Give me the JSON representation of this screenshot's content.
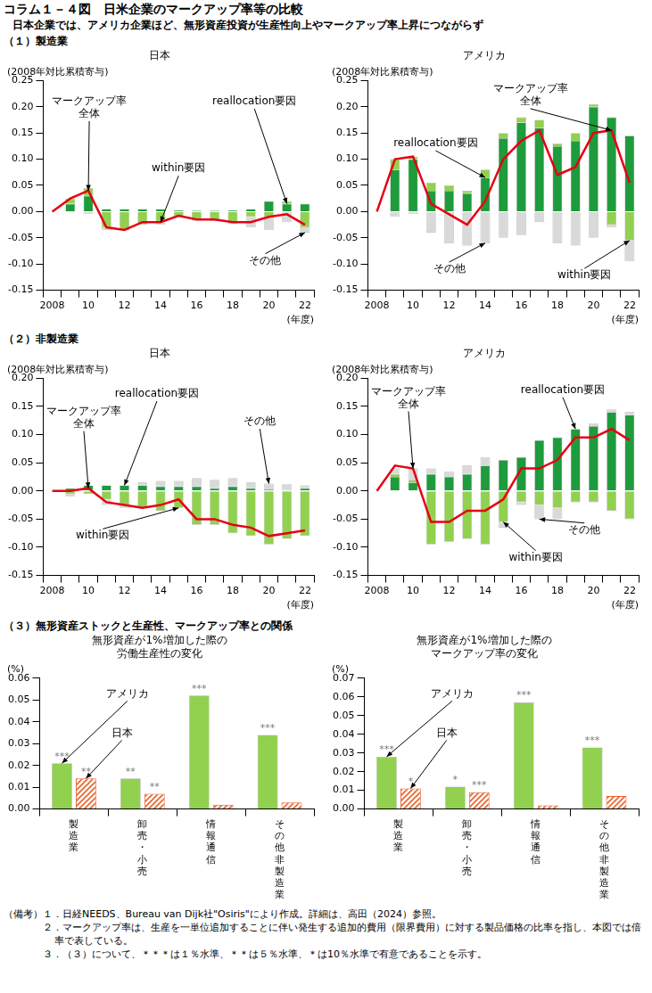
{
  "title": "コラム１－４図　日米企業のマークアップ率等の比較",
  "subtitle": "日本企業では、アメリカ企業ほど、無形資産投資が生産性向上やマークアップ率上昇につながらず",
  "sections": [
    "（１）製造業",
    "（２）非製造業",
    "（３）無形資産ストックと生産性、マークアップ率との関係"
  ],
  "notes_label": "（備考）",
  "notes": [
    "１．日経NEEDS、Bureau van Dijk社\"Osiris\"により作成。詳細は、高田（2024）参照。",
    "２．マークアップ率は、生産を一単位追加することに伴い発生する追加的費用（限界費用）に対する製品価格の比率を指し、本図では倍率で表している。",
    "３．（３）について、＊＊＊は１％水準、＊＊は５％水準、＊は10％水準で有意であることを示す。"
  ],
  "chart_data": [
    {
      "type": "bar",
      "title": "日本",
      "y_label": "(2008年対比累積寄与)",
      "x_label": "(年度)",
      "categories": [
        "2008",
        null,
        "10",
        null,
        "12",
        null,
        "14",
        null,
        "16",
        null,
        "18",
        null,
        "20",
        null,
        "22"
      ],
      "ylim": [
        -0.15,
        0.25
      ],
      "yticks": [
        -0.15,
        {
          "value": -0.1,
          "label": "-0.10"
        },
        -0.05,
        {
          "value": 0,
          "label": "0.00"
        },
        0.05,
        {
          "value": 0.1,
          "label": "0.10"
        },
        0.15,
        {
          "value": 0.2,
          "label": "0.20"
        },
        0.25
      ],
      "grid": false,
      "stacked": true,
      "series": [
        {
          "name": "reallocation要因",
          "type": "bar",
          "color": "#1e9b3c",
          "values": [
            0,
            0.015,
            0.03,
            0.005,
            0.005,
            0.005,
            0.005,
            0.003,
            0.002,
            0.002,
            0.003,
            0.005,
            0.02,
            0.015,
            0.015
          ]
        },
        {
          "name": "within要因",
          "type": "bar",
          "color": "#92d050",
          "values": [
            0,
            0.01,
            0.015,
            -0.03,
            -0.035,
            -0.025,
            -0.02,
            -0.01,
            -0.015,
            -0.015,
            -0.02,
            -0.01,
            -0.01,
            0.005,
            -0.03
          ]
        },
        {
          "name": "その他",
          "type": "bar",
          "color": "#d9d9d9",
          "values": [
            0,
            0,
            -0.005,
            -0.005,
            0,
            0,
            -0.005,
            0,
            -0.002,
            -0.003,
            -0.003,
            -0.02,
            -0.025,
            -0.02,
            -0.01
          ]
        },
        {
          "name": "マークアップ率\n全体",
          "type": "line",
          "color": "#e60012",
          "values": [
            0,
            0.025,
            0.04,
            -0.03,
            -0.035,
            -0.02,
            -0.02,
            -0.008,
            -0.015,
            -0.015,
            -0.02,
            -0.02,
            -0.01,
            -0.005,
            -0.025
          ]
        }
      ]
    },
    {
      "type": "bar",
      "title": "アメリカ",
      "y_label": "(2008年対比累積寄与)",
      "x_label": "(年度)",
      "categories": [
        "2008",
        null,
        "10",
        null,
        "12",
        null,
        "14",
        null,
        "16",
        null,
        "18",
        null,
        "20",
        null,
        "22"
      ],
      "ylim": [
        -0.15,
        0.25
      ],
      "yticks": [
        -0.15,
        {
          "value": -0.1,
          "label": "-0.10"
        },
        -0.05,
        {
          "value": 0,
          "label": "0.00"
        },
        0.05,
        {
          "value": 0.1,
          "label": "0.10"
        },
        0.15,
        {
          "value": 0.2,
          "label": "0.20"
        },
        0.25
      ],
      "grid": false,
      "stacked": true,
      "series": [
        {
          "name": "reallocation要因",
          "type": "bar",
          "color": "#1e9b3c",
          "values": [
            0,
            0.08,
            0.1,
            0.04,
            0.04,
            0.035,
            0.065,
            0.14,
            0.17,
            0.16,
            0.125,
            0.135,
            0.2,
            0.18,
            0.145
          ]
        },
        {
          "name": "within要因",
          "type": "bar",
          "color": "#92d050",
          "values": [
            0,
            0.02,
            0.005,
            0.015,
            0.01,
            0.005,
            0.015,
            0.01,
            0.01,
            0.015,
            0.005,
            0.015,
            0.005,
            -0.025,
            -0.055
          ]
        },
        {
          "name": "その他",
          "type": "bar",
          "color": "#d9d9d9",
          "values": [
            0,
            -0.01,
            -0.005,
            -0.04,
            -0.06,
            -0.065,
            -0.06,
            -0.05,
            -0.045,
            -0.02,
            -0.06,
            -0.065,
            -0.05,
            -0.005,
            -0.04
          ]
        },
        {
          "name": "マークアップ率\n全体",
          "type": "line",
          "color": "#e60012",
          "values": [
            0,
            0.1,
            0.105,
            0.015,
            -0.005,
            -0.025,
            0.02,
            0.1,
            0.135,
            0.155,
            0.07,
            0.085,
            0.15,
            0.155,
            0.055
          ]
        }
      ]
    },
    {
      "type": "bar",
      "title": "日本",
      "y_label": "(2008年対比累積寄与)",
      "x_label": "(年度)",
      "categories": [
        "2008",
        null,
        "10",
        null,
        "12",
        null,
        "14",
        null,
        "16",
        null,
        "18",
        null,
        "20",
        null,
        "22"
      ],
      "ylim": [
        -0.15,
        0.2
      ],
      "yticks": [
        -0.15,
        {
          "value": -0.1,
          "label": "-0.10"
        },
        -0.05,
        {
          "value": 0,
          "label": "0.00"
        },
        0.05,
        {
          "value": 0.1,
          "label": "0.10"
        },
        0.15,
        {
          "value": 0.2,
          "label": "0.20"
        }
      ],
      "grid": false,
      "stacked": true,
      "series": [
        {
          "name": "reallocation要因",
          "type": "bar",
          "color": "#1e9b3c",
          "values": [
            0,
            0.005,
            0.01,
            0.01,
            0.01,
            0.01,
            0.008,
            0.008,
            0.008,
            0.005,
            0.008,
            0.005,
            0.003,
            0.002,
            0.005
          ]
        },
        {
          "name": "within要因",
          "type": "bar",
          "color": "#92d050",
          "values": [
            0,
            -0.005,
            -0.005,
            -0.015,
            -0.025,
            -0.03,
            -0.035,
            -0.03,
            -0.06,
            -0.06,
            -0.075,
            -0.08,
            -0.095,
            -0.085,
            -0.08
          ]
        },
        {
          "name": "その他",
          "type": "bar",
          "color": "#d9d9d9",
          "values": [
            0,
            -0.005,
            0,
            -0.01,
            -0.005,
            0.005,
            0.01,
            0.01,
            0.015,
            0.015,
            0.015,
            0.01,
            0.01,
            0.01,
            0.005
          ]
        },
        {
          "name": "マークアップ率\n全体",
          "type": "line",
          "color": "#e60012",
          "values": [
            0,
            0,
            0.005,
            -0.02,
            -0.025,
            -0.03,
            -0.025,
            -0.015,
            -0.05,
            -0.05,
            -0.06,
            -0.065,
            -0.08,
            -0.075,
            -0.07
          ]
        }
      ]
    },
    {
      "type": "bar",
      "title": "アメリカ",
      "y_label": "(2008年対比累積寄与)",
      "x_label": "(年度)",
      "categories": [
        "2008",
        null,
        "10",
        null,
        "12",
        null,
        "14",
        null,
        "16",
        null,
        "18",
        null,
        "20",
        null,
        "22"
      ],
      "ylim": [
        -0.15,
        0.2
      ],
      "yticks": [
        -0.15,
        {
          "value": -0.1,
          "label": "-0.10"
        },
        -0.05,
        {
          "value": 0,
          "label": "0.00"
        },
        0.05,
        {
          "value": 0.1,
          "label": "0.10"
        },
        0.15,
        {
          "value": 0.2,
          "label": "0.20"
        }
      ],
      "grid": false,
      "stacked": true,
      "series": [
        {
          "name": "reallocation要因",
          "type": "bar",
          "color": "#1e9b3c",
          "values": [
            0,
            0.025,
            0.015,
            0.03,
            0.025,
            0.03,
            0.045,
            0.055,
            0.06,
            0.09,
            0.095,
            0.11,
            0.115,
            0.14,
            0.135
          ]
        },
        {
          "name": "within要因",
          "type": "bar",
          "color": "#92d050",
          "values": [
            0,
            0.005,
            0.005,
            -0.095,
            -0.09,
            -0.085,
            -0.095,
            -0.055,
            -0.02,
            -0.025,
            -0.03,
            -0.02,
            -0.02,
            -0.035,
            -0.05
          ]
        },
        {
          "name": "その他",
          "type": "bar",
          "color": "#d9d9d9",
          "values": [
            0,
            0.01,
            0.02,
            0.01,
            0.01,
            0.015,
            0.015,
            -0.01,
            -0.005,
            -0.025,
            -0.02,
            0,
            0.005,
            0.005,
            0.005
          ]
        },
        {
          "name": "マークアップ率\n全体",
          "type": "line",
          "color": "#e60012",
          "values": [
            0,
            0.045,
            0.04,
            -0.055,
            -0.055,
            -0.035,
            -0.035,
            -0.015,
            0.04,
            0.04,
            0.055,
            0.095,
            0.095,
            0.11,
            0.09
          ]
        }
      ]
    },
    {
      "type": "bar",
      "title": "無形資産が1%増加した際の\n労働生産性の変化",
      "y_label": "(%)",
      "categories": [
        "製造業",
        "卸売・小売",
        "情報通信",
        "その他非製造業"
      ],
      "ylim": [
        0,
        0.06
      ],
      "yticks": [
        {
          "value": 0,
          "label": "0.00"
        },
        0.01,
        0.02,
        0.03,
        0.04,
        0.05,
        0.06
      ],
      "grid": false,
      "stacked": false,
      "series": [
        {
          "name": "アメリカ",
          "color": "#92d050",
          "values": [
            0.021,
            0.014,
            0.052,
            0.034
          ],
          "significance": [
            "***",
            "**",
            "***",
            "***"
          ]
        },
        {
          "name": "日本",
          "color": "#e8622a",
          "values": [
            0.014,
            0.007,
            0.002,
            0.003
          ],
          "significance": [
            "**",
            "**",
            null,
            null
          ]
        }
      ]
    },
    {
      "type": "bar",
      "title": "無形資産が1%増加した際の\nマークアップ率の変化",
      "y_label": "(%)",
      "categories": [
        "製造業",
        "卸売・小売",
        "情報通信",
        "その他非製造業"
      ],
      "ylim": [
        0,
        0.07
      ],
      "yticks": [
        {
          "value": 0,
          "label": "0.00"
        },
        0.01,
        0.02,
        0.03,
        0.04,
        0.05,
        0.06,
        0.07
      ],
      "grid": false,
      "stacked": false,
      "series": [
        {
          "name": "アメリカ",
          "color": "#92d050",
          "values": [
            0.028,
            0.012,
            0.057,
            0.033
          ],
          "significance": [
            "***",
            "*",
            "***",
            "***"
          ]
        },
        {
          "name": "日本",
          "color": "#e8622a",
          "values": [
            0.011,
            0.009,
            0.002,
            0.007
          ],
          "significance": [
            "*",
            "***",
            null,
            null
          ]
        }
      ]
    }
  ]
}
